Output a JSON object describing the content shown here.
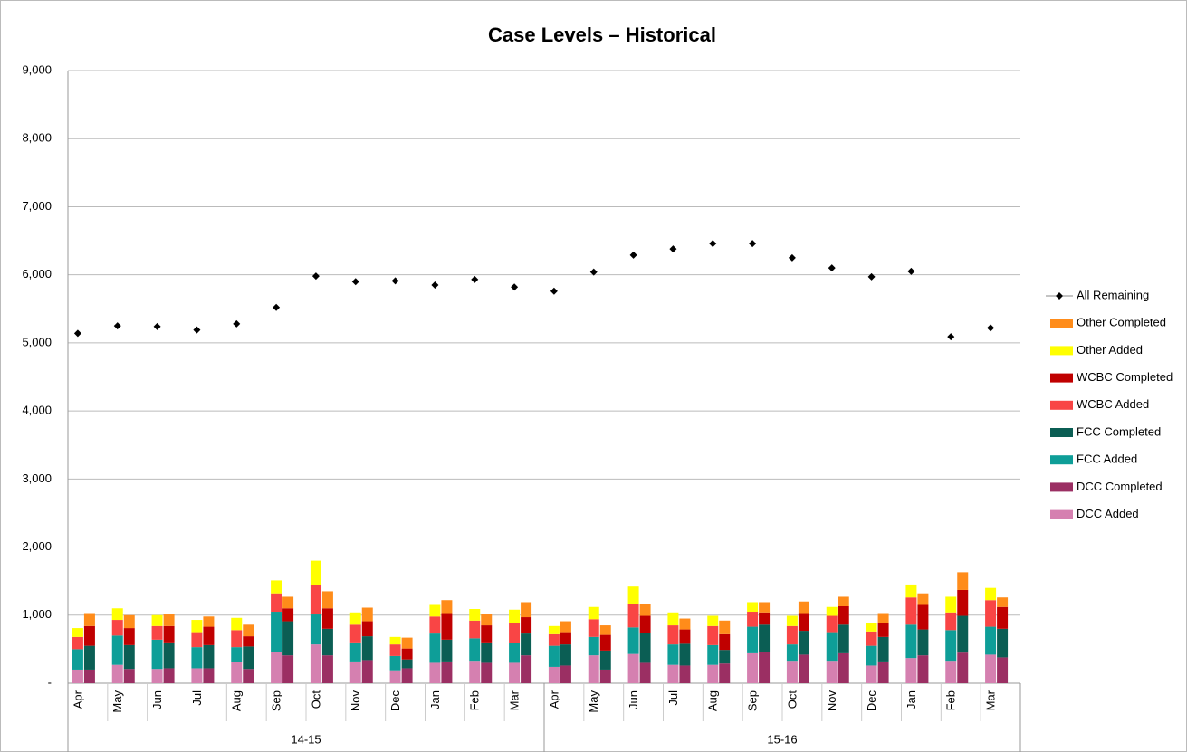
{
  "chart_data": {
    "type": "bar",
    "title": "Case Levels – Historical",
    "categories": [
      "Apr",
      "May",
      "Jun",
      "Jul",
      "Aug",
      "Sep",
      "Oct",
      "Nov",
      "Dec",
      "Jan",
      "Feb",
      "Mar",
      "Apr",
      "May",
      "Jun",
      "Jul",
      "Aug",
      "Sep",
      "Oct",
      "Nov",
      "Dec",
      "Jan",
      "Feb",
      "Mar"
    ],
    "category_groups": [
      "14-15",
      "15-16"
    ],
    "ylim": [
      0,
      9000
    ],
    "yticks": [
      {
        "value": 0,
        "label": "-"
      },
      {
        "value": 1000,
        "label": "1,000"
      },
      {
        "value": 2000,
        "label": "2,000"
      },
      {
        "value": 3000,
        "label": "3,000"
      },
      {
        "value": 4000,
        "label": "4,000"
      },
      {
        "value": 5000,
        "label": "5,000"
      },
      {
        "value": 6000,
        "label": "6,000"
      },
      {
        "value": 7000,
        "label": "7,000"
      },
      {
        "value": 8000,
        "label": "8,000"
      },
      {
        "value": 9000,
        "label": "9,000"
      }
    ],
    "grid": true,
    "legend": "right",
    "series": [
      {
        "name": "DCC Added",
        "color": "#d580b0",
        "stack": "added",
        "values": [
          200,
          270,
          210,
          220,
          310,
          460,
          570,
          320,
          190,
          300,
          330,
          300,
          240,
          410,
          430,
          270,
          270,
          440,
          330,
          330,
          260,
          370,
          330,
          420
        ]
      },
      {
        "name": "DCC Completed",
        "color": "#9b2f63",
        "stack": "completed",
        "values": [
          200,
          210,
          220,
          220,
          210,
          410,
          410,
          340,
          220,
          320,
          300,
          410,
          260,
          200,
          300,
          260,
          290,
          460,
          420,
          440,
          320,
          410,
          450,
          380
        ]
      },
      {
        "name": "FCC Added",
        "color": "#0e9e98",
        "stack": "added",
        "values": [
          300,
          430,
          430,
          310,
          220,
          590,
          440,
          280,
          210,
          430,
          330,
          290,
          310,
          270,
          390,
          300,
          290,
          390,
          240,
          420,
          290,
          490,
          450,
          410
        ]
      },
      {
        "name": "FCC Completed",
        "color": "#0b5e54",
        "stack": "completed",
        "values": [
          350,
          350,
          380,
          340,
          330,
          500,
          390,
          350,
          130,
          320,
          300,
          320,
          310,
          280,
          440,
          320,
          200,
          400,
          350,
          420,
          360,
          380,
          540,
          420
        ]
      },
      {
        "name": "WCBC Added",
        "color": "#f94545",
        "stack": "added",
        "values": [
          180,
          230,
          200,
          220,
          250,
          270,
          430,
          260,
          170,
          250,
          260,
          290,
          170,
          260,
          350,
          280,
          280,
          220,
          270,
          240,
          210,
          400,
          260,
          390
        ]
      },
      {
        "name": "WCBC Completed",
        "color": "#c00000",
        "stack": "completed",
        "values": [
          290,
          250,
          240,
          270,
          150,
          190,
          300,
          220,
          160,
          390,
          250,
          240,
          180,
          230,
          250,
          210,
          230,
          180,
          260,
          270,
          210,
          360,
          380,
          320
        ]
      },
      {
        "name": "Other Added",
        "color": "#ffff00",
        "stack": "added",
        "values": [
          130,
          170,
          160,
          180,
          180,
          190,
          360,
          180,
          110,
          170,
          170,
          200,
          120,
          180,
          250,
          190,
          150,
          140,
          150,
          130,
          130,
          190,
          230,
          180
        ]
      },
      {
        "name": "Other Completed",
        "color": "#ff8c1a",
        "stack": "completed",
        "values": [
          190,
          190,
          170,
          150,
          170,
          170,
          250,
          200,
          160,
          190,
          170,
          220,
          160,
          140,
          170,
          160,
          200,
          150,
          170,
          140,
          140,
          170,
          260,
          140
        ]
      },
      {
        "name": "All Remaining",
        "color": "#000000",
        "type": "line",
        "marker": "diamond",
        "values": [
          5140,
          5250,
          5240,
          5190,
          5280,
          5520,
          5980,
          5900,
          5910,
          5850,
          5930,
          5820,
          5760,
          6040,
          6290,
          6380,
          6460,
          6460,
          6250,
          6100,
          5970,
          6050,
          5090,
          5220
        ]
      }
    ]
  }
}
